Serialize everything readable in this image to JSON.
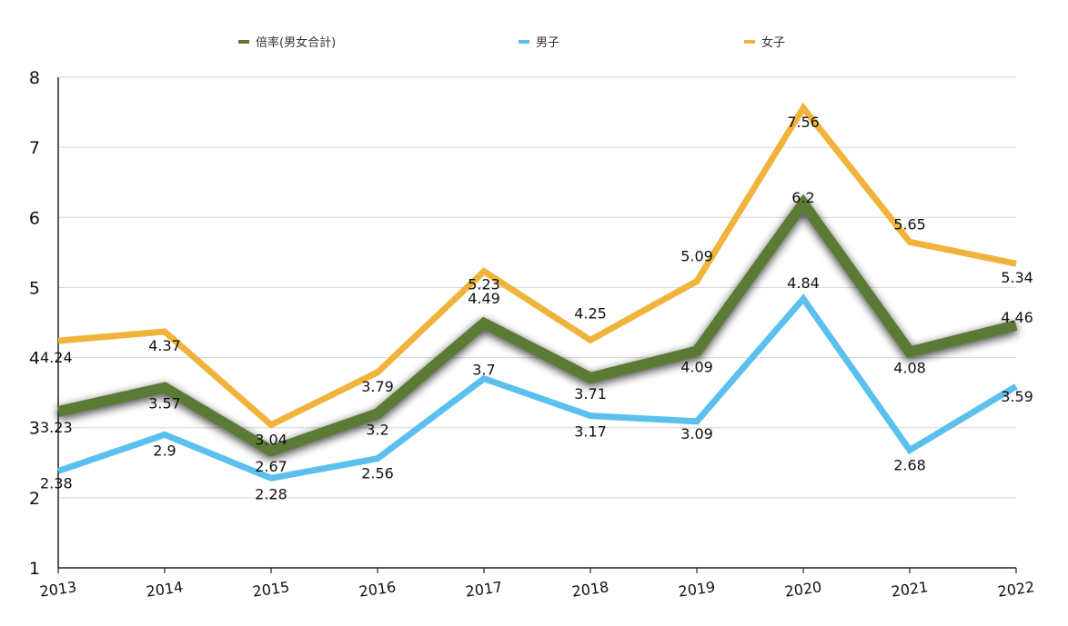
{
  "chart_data": {
    "type": "line",
    "title": "",
    "xlabel": "",
    "ylabel": "",
    "categories": [
      "2013",
      "2014",
      "2015",
      "2016",
      "2017",
      "2018",
      "2019",
      "2020",
      "2021",
      "2022"
    ],
    "ylim": [
      1,
      8
    ],
    "yticks": [
      1,
      2,
      3,
      4,
      5,
      6,
      7,
      8
    ],
    "grid": true,
    "legend_position": "top",
    "series": [
      {
        "name": "倍率(男女合計)",
        "color": "#5a7a34",
        "values": [
          3.23,
          3.57,
          2.67,
          3.2,
          4.49,
          3.71,
          4.09,
          6.2,
          4.08,
          4.46
        ],
        "labels": [
          "3.23",
          "3.57",
          "2.67",
          "3.2",
          "4.49",
          "3.71",
          "4.09",
          "6.2",
          "4.08",
          "4.46"
        ]
      },
      {
        "name": "男子",
        "color": "#5bc0ee",
        "values": [
          2.38,
          2.9,
          2.28,
          2.56,
          3.7,
          3.17,
          3.09,
          4.84,
          2.68,
          3.59
        ],
        "labels": [
          "2.38",
          "2.9",
          "2.28",
          "2.56",
          "3.7",
          "3.17",
          "3.09",
          "4.84",
          "2.68",
          "3.59"
        ]
      },
      {
        "name": "女子",
        "color": "#f0b43c",
        "values": [
          4.24,
          4.37,
          3.04,
          3.79,
          5.23,
          4.25,
          5.09,
          7.56,
          5.65,
          5.34
        ],
        "labels": [
          "4.24",
          "4.37",
          "3.04",
          "3.79",
          "5.23",
          "4.25",
          "5.09",
          "7.56",
          "5.65",
          "5.34"
        ]
      }
    ]
  }
}
